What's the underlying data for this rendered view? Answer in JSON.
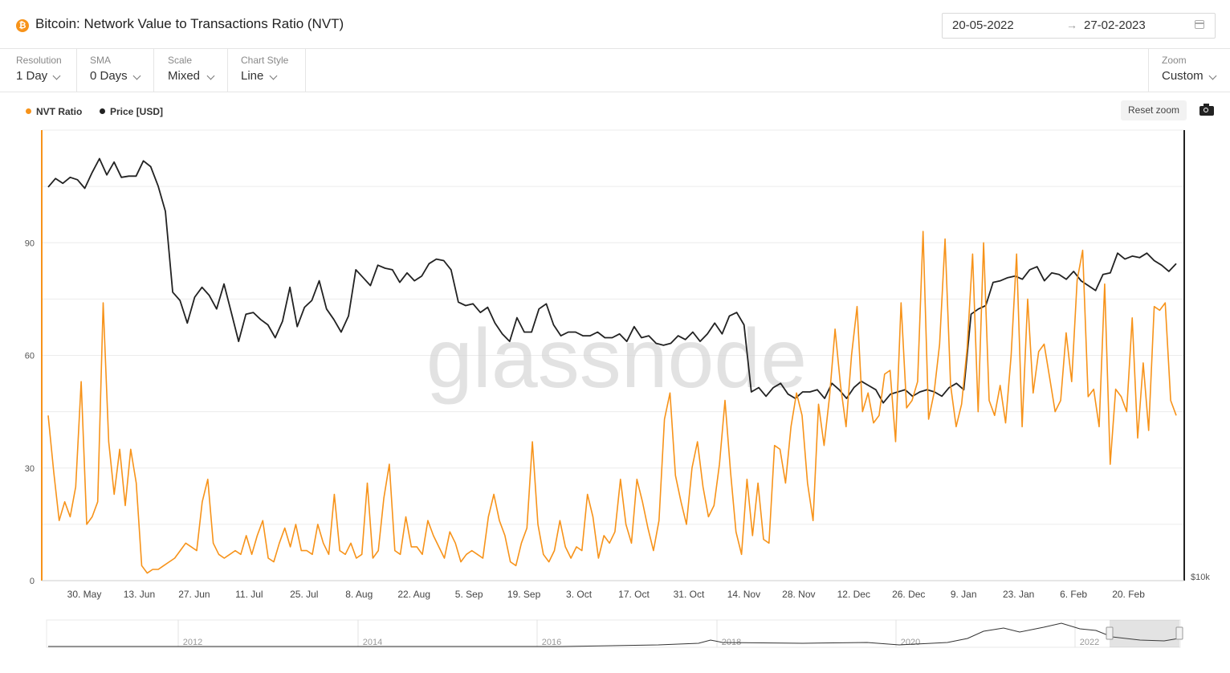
{
  "header": {
    "title": "Bitcoin: Network Value to Transactions Ratio (NVT)",
    "coin_icon": "bitcoin-icon",
    "date_start": "20-05-2022",
    "date_arrow": "→",
    "date_end": "27-02-2023"
  },
  "controls": [
    {
      "label": "Resolution",
      "value": "1 Day"
    },
    {
      "label": "SMA",
      "value": "0 Days"
    },
    {
      "label": "Scale",
      "value": "Mixed"
    },
    {
      "label": "Chart Style",
      "value": "Line"
    }
  ],
  "zoom": {
    "label": "Zoom",
    "value": "Custom"
  },
  "reset_zoom": "Reset zoom",
  "watermark": "glassnode",
  "colors": {
    "nvt": "#f7931a",
    "price": "#222222",
    "grid": "#ececec"
  },
  "chart_data": {
    "type": "line",
    "x_tick_labels": [
      "30. May",
      "13. Jun",
      "27. Jun",
      "11. Jul",
      "25. Jul",
      "8. Aug",
      "22. Aug",
      "5. Sep",
      "19. Sep",
      "3. Oct",
      "17. Oct",
      "31. Oct",
      "14. Nov",
      "28. Nov",
      "12. Dec",
      "26. Dec",
      "9. Jan",
      "23. Jan",
      "6. Feb",
      "20. Feb"
    ],
    "x_range": [
      "2022-05-20",
      "2023-02-27"
    ],
    "left_axis": {
      "ticks": [
        0,
        30,
        60,
        90
      ],
      "range": [
        0,
        120
      ],
      "scale": "linear"
    },
    "right_axis": {
      "ticks_labeled": [
        "$10k"
      ],
      "scale": "log"
    },
    "series": [
      {
        "name": "NVT Ratio",
        "axis": "left",
        "color": "#f7931a",
        "sample_every_days": 2,
        "values": [
          44,
          29,
          16,
          21,
          17,
          25,
          53,
          15,
          17,
          21,
          74,
          37,
          23,
          35,
          20,
          35,
          26,
          4,
          2,
          3,
          3,
          4,
          5,
          6,
          8,
          10,
          9,
          8,
          21,
          27,
          10,
          7,
          6,
          7,
          8,
          7,
          12,
          7,
          12,
          16,
          6,
          5,
          10,
          14,
          9,
          15,
          8,
          8,
          7,
          15,
          10,
          7,
          23,
          8,
          7,
          10,
          6,
          7,
          26,
          6,
          8,
          22,
          31,
          8,
          7,
          17,
          9,
          9,
          7,
          16,
          12,
          9,
          6,
          13,
          10,
          5,
          7,
          8,
          7,
          6,
          17,
          23,
          16,
          12,
          5,
          4,
          10,
          14,
          37,
          15,
          7,
          5,
          8,
          16,
          9,
          6,
          9,
          8,
          23,
          17,
          6,
          12,
          10,
          13,
          27,
          15,
          10,
          27,
          21,
          14,
          8,
          16,
          43,
          50,
          28,
          21,
          15,
          30,
          37,
          25,
          17,
          20,
          31,
          48,
          29,
          13,
          7,
          27,
          12,
          26,
          11,
          10,
          36,
          35,
          26,
          41,
          50,
          44,
          26,
          16,
          47,
          36,
          49,
          67,
          52,
          41,
          60,
          73,
          45,
          50,
          42,
          44,
          55,
          56,
          37,
          74,
          46,
          48,
          53,
          93,
          43,
          50,
          63,
          91,
          52,
          41,
          47,
          62,
          87,
          45,
          90,
          48,
          44,
          52,
          42,
          60,
          87,
          41,
          75,
          50,
          61,
          63,
          54,
          45,
          48,
          66,
          53,
          80,
          88,
          49,
          51,
          41,
          79,
          31,
          51,
          49,
          45,
          70,
          38,
          58,
          40,
          73,
          72,
          74,
          48,
          44
        ]
      },
      {
        "name": "Price [USD]",
        "axis": "right",
        "color": "#222222",
        "sample_every_days": 2,
        "values": [
          29500,
          30200,
          29800,
          30300,
          30100,
          29400,
          30700,
          31900,
          30500,
          31600,
          30300,
          30400,
          30400,
          31700,
          31200,
          29600,
          27600,
          22100,
          21600,
          20300,
          21800,
          22400,
          21900,
          21100,
          22600,
          20900,
          19300,
          20800,
          20900,
          20500,
          20200,
          19500,
          20400,
          22400,
          20100,
          21200,
          21600,
          22800,
          21100,
          20500,
          19800,
          20700,
          23500,
          23000,
          22500,
          23800,
          23600,
          23500,
          22700,
          23300,
          22800,
          23100,
          23900,
          24200,
          24100,
          23500,
          21500,
          21300,
          21400,
          20900,
          21200,
          20300,
          19700,
          19300,
          20600,
          19800,
          19800,
          21100,
          21400,
          20200,
          19600,
          19800,
          19800,
          19600,
          19600,
          19800,
          19500,
          19500,
          19700,
          19300,
          20100,
          19500,
          19600,
          19200,
          19100,
          19200,
          19600,
          19400,
          19800,
          19300,
          19700,
          20300,
          19700,
          20700,
          20900,
          20200,
          16800,
          17000,
          16600,
          17000,
          17200,
          16700,
          16500,
          16800,
          16800,
          16900,
          16500,
          17200,
          16900,
          16500,
          17000,
          17300,
          17100,
          16900,
          16300,
          16700,
          16800,
          16900,
          16600,
          16800,
          16900,
          16800,
          16600,
          17000,
          17200,
          16900,
          20800,
          21100,
          21300,
          22700,
          22800,
          23000,
          23100,
          22900,
          23500,
          23700,
          22800,
          23300,
          23200,
          22900,
          23400,
          22800,
          22500,
          22200,
          23200,
          23300,
          24600,
          24200,
          24400,
          24300,
          24600,
          24100,
          23800,
          23400,
          23900
        ],
        "start_index_day": 0
      }
    ],
    "navigator": {
      "year_labels": [
        "2012",
        "2014",
        "2016",
        "2018",
        "2020",
        "2022"
      ]
    }
  }
}
